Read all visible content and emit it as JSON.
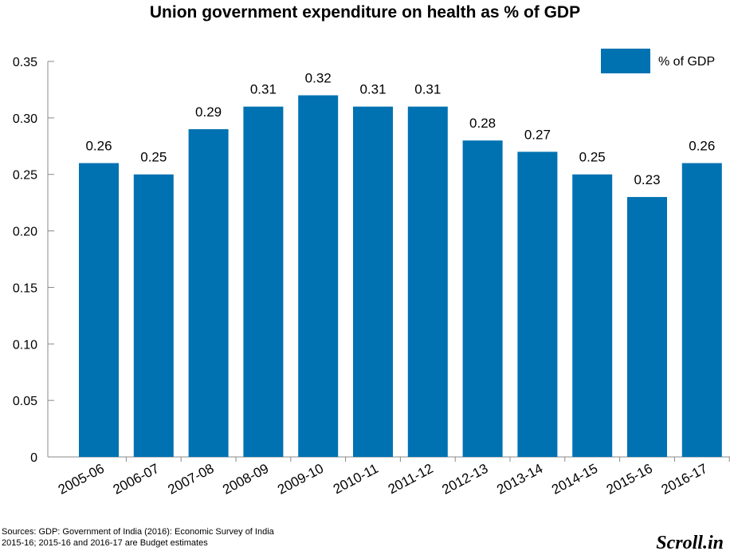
{
  "chart_data": {
    "type": "bar",
    "title": "Union government expenditure on health as % of GDP",
    "categories": [
      "2005-06",
      "2006-07",
      "2007-08",
      "2008-09",
      "2009-10",
      "2010-11",
      "2011-12",
      "2012-13",
      "2013-14",
      "2014-15",
      "2015-16",
      "2016-17"
    ],
    "series": [
      {
        "name": "% of GDP",
        "values": [
          0.26,
          0.25,
          0.29,
          0.31,
          0.32,
          0.31,
          0.31,
          0.28,
          0.27,
          0.25,
          0.23,
          0.26
        ],
        "color": "#0072b1"
      }
    ],
    "data_labels": [
      "0.26",
      "0.25",
      "0.29",
      "0.31",
      "0.32",
      "0.31",
      "0.31",
      "0.28",
      "0.27",
      "0.25",
      "0.23",
      "0.26"
    ],
    "yticks": [
      "0",
      "0.05",
      "0.10",
      "0.15",
      "0.20",
      "0.25",
      "0.30",
      "0.35"
    ],
    "ylim": [
      0,
      0.35
    ],
    "xlabel": "",
    "ylabel": "",
    "grid": false,
    "legend_position": "top-right"
  },
  "footer": {
    "source_line1": "Sources: GDP: Government of India (2016): Economic Survey of India",
    "source_line2": "2015-16; 2015-16 and 2016-17 are Budget estimates",
    "brand": "Scroll.in"
  }
}
